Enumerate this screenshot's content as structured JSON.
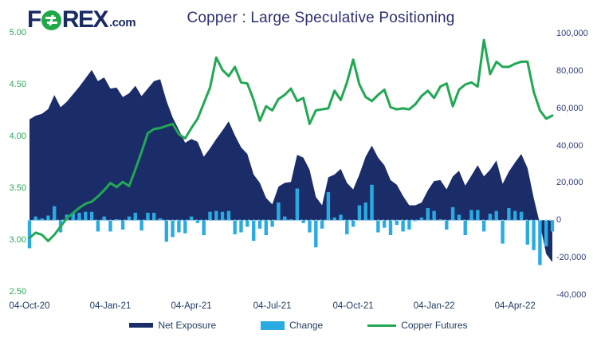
{
  "header": {
    "logo": {
      "part1": "F",
      "part2": "REX",
      "suffix": ".com"
    },
    "title": "Copper : Large Speculative Positioning"
  },
  "colors": {
    "net_exposure": "#1b2d69",
    "change": "#29abe2",
    "copper_futures": "#21a853",
    "zero_dash": "#86d0f0",
    "left_axis_text": "#2aa75a",
    "right_axis_text": "#2f3e77",
    "date_text": "#1d3a5f",
    "title_text": "#2b2f6e",
    "logo_navy": "#1a2b63",
    "logo_green": "#21a849"
  },
  "legend": {
    "items": [
      {
        "label": "Net Exposure",
        "swatch": "area",
        "color": "#1b2d69"
      },
      {
        "label": "Change",
        "swatch": "bar",
        "color": "#29abe2"
      },
      {
        "label": "Copper Futures",
        "swatch": "line",
        "color": "#21a853"
      }
    ]
  },
  "chart_data": {
    "type": "combo",
    "title": "Copper : Large Speculative Positioning",
    "x_axis": {
      "unit": "weeks",
      "tick_labels": [
        "04-Oct-20",
        "04-Jan-21",
        "04-Apr-21",
        "04-Jul-21",
        "04-Oct-21",
        "04-Jan-22",
        "04-Apr-22"
      ],
      "tick_weeks": [
        0,
        13,
        26,
        39,
        52,
        65,
        78
      ],
      "total_points": 85
    },
    "left_axis": {
      "min": 2.5,
      "max": 5.0,
      "ticks": [
        "5.00",
        "4.50",
        "4.00",
        "3.50",
        "3.00",
        "2.50"
      ],
      "tick_values": [
        5.0,
        4.5,
        4.0,
        3.5,
        3.0,
        2.5
      ]
    },
    "right_axis": {
      "min": -40000,
      "max": 100000,
      "ticks": [
        "100,000",
        "80,000",
        "60,000",
        "40,000",
        "20,000",
        "0",
        "-20,000",
        "-40,000"
      ],
      "tick_values": [
        100000,
        80000,
        60000,
        40000,
        20000,
        0,
        -20000,
        -40000
      ]
    },
    "series": [
      {
        "name": "Net Exposure",
        "type": "area",
        "axis": "right",
        "color": "#1b2d69",
        "values": [
          54000,
          56000,
          57000,
          59500,
          67000,
          60500,
          63500,
          67500,
          71500,
          76000,
          80500,
          74500,
          76500,
          70500,
          71000,
          66000,
          68000,
          72000,
          66500,
          70500,
          74500,
          75500,
          64000,
          55000,
          48500,
          41500,
          43500,
          42000,
          34000,
          38500,
          43500,
          48000,
          53000,
          45500,
          39000,
          35500,
          24500,
          20000,
          12000,
          8500,
          18000,
          20000,
          20500,
          35000,
          33500,
          27000,
          12500,
          8000,
          23000,
          24500,
          27500,
          20000,
          16500,
          24500,
          34000,
          40000,
          33500,
          29500,
          21500,
          19000,
          13000,
          8000,
          8000,
          9500,
          16000,
          21000,
          21500,
          16500,
          23500,
          26500,
          18500,
          24000,
          29500,
          23500,
          27000,
          32000,
          19500,
          26000,
          31000,
          35500,
          28000,
          12000,
          -2000,
          -18000,
          -22500
        ]
      },
      {
        "name": "Change",
        "type": "bar",
        "axis": "right",
        "color": "#29abe2",
        "values": [
          -15000,
          2000,
          1000,
          2500,
          7500,
          -6500,
          3000,
          4000,
          4000,
          4500,
          4500,
          -6000,
          2000,
          -6000,
          500,
          -5000,
          2000,
          4000,
          -5500,
          4000,
          4000,
          1000,
          -11500,
          -9000,
          -6500,
          -7000,
          2000,
          -1500,
          -8000,
          4500,
          5000,
          4500,
          5000,
          -7500,
          -6500,
          -3500,
          -11000,
          -4500,
          -8000,
          -3500,
          9500,
          2000,
          500,
          17000,
          -1500,
          -6500,
          -14500,
          -4500,
          15000,
          1500,
          3000,
          -7500,
          -3500,
          8000,
          9500,
          19000,
          -6500,
          -4000,
          -8000,
          -2500,
          -6000,
          -5000,
          -500,
          1500,
          6500,
          5000,
          500,
          -5000,
          7000,
          3000,
          -8000,
          5500,
          5500,
          -6000,
          3500,
          5000,
          -12500,
          6500,
          5000,
          4500,
          -13000,
          -16000,
          -24000,
          -14000,
          -6000
        ]
      },
      {
        "name": "Copper Futures",
        "type": "line",
        "axis": "left",
        "color": "#21a853",
        "values": [
          3.02,
          3.07,
          3.05,
          2.99,
          3.05,
          3.13,
          3.21,
          3.26,
          3.31,
          3.35,
          3.37,
          3.42,
          3.48,
          3.55,
          3.51,
          3.56,
          3.52,
          3.68,
          3.85,
          4.03,
          4.07,
          4.08,
          4.1,
          4.12,
          4.02,
          3.98,
          4.08,
          4.17,
          4.32,
          4.47,
          4.76,
          4.64,
          4.58,
          4.67,
          4.52,
          4.51,
          4.35,
          4.15,
          4.29,
          4.25,
          4.36,
          4.4,
          4.46,
          4.34,
          4.37,
          4.12,
          4.25,
          4.26,
          4.27,
          4.44,
          4.35,
          4.52,
          4.74,
          4.5,
          4.38,
          4.34,
          4.4,
          4.45,
          4.28,
          4.26,
          4.27,
          4.26,
          4.31,
          4.39,
          4.44,
          4.37,
          4.48,
          4.51,
          4.29,
          4.45,
          4.5,
          4.52,
          4.48,
          4.93,
          4.6,
          4.72,
          4.67,
          4.67,
          4.7,
          4.72,
          4.72,
          4.43,
          4.25,
          4.17,
          4.2
        ]
      }
    ]
  }
}
